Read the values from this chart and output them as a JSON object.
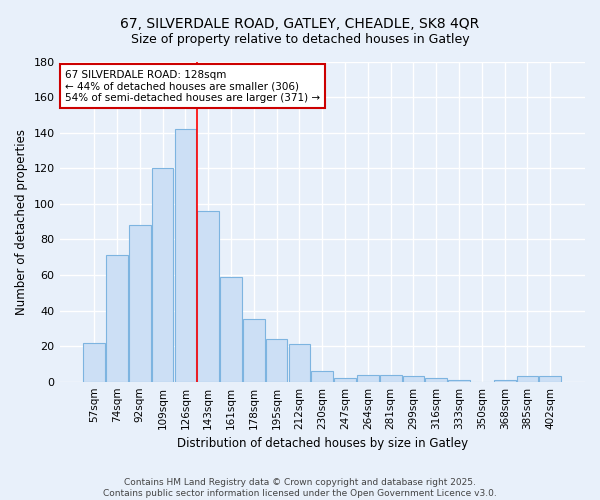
{
  "title1": "67, SILVERDALE ROAD, GATLEY, CHEADLE, SK8 4QR",
  "title2": "Size of property relative to detached houses in Gatley",
  "xlabel": "Distribution of detached houses by size in Gatley",
  "ylabel": "Number of detached properties",
  "categories": [
    "57sqm",
    "74sqm",
    "92sqm",
    "109sqm",
    "126sqm",
    "143sqm",
    "161sqm",
    "178sqm",
    "195sqm",
    "212sqm",
    "230sqm",
    "247sqm",
    "264sqm",
    "281sqm",
    "299sqm",
    "316sqm",
    "333sqm",
    "350sqm",
    "368sqm",
    "385sqm",
    "402sqm"
  ],
  "values": [
    22,
    71,
    88,
    120,
    142,
    96,
    59,
    35,
    24,
    21,
    6,
    2,
    4,
    4,
    3,
    2,
    1,
    0,
    1,
    3,
    3
  ],
  "bar_color": "#ccdff5",
  "bar_edge_color": "#7db4e0",
  "bg_color": "#e8f0fa",
  "grid_color": "#ffffff",
  "red_line_index": 5,
  "annotation_text": "67 SILVERDALE ROAD: 128sqm\n← 44% of detached houses are smaller (306)\n54% of semi-detached houses are larger (371) →",
  "annotation_box_color": "#ffffff",
  "annotation_box_edge": "#cc0000",
  "ylim": [
    0,
    180
  ],
  "yticks": [
    0,
    20,
    40,
    60,
    80,
    100,
    120,
    140,
    160,
    180
  ],
  "footer1": "Contains HM Land Registry data © Crown copyright and database right 2025.",
  "footer2": "Contains public sector information licensed under the Open Government Licence v3.0."
}
